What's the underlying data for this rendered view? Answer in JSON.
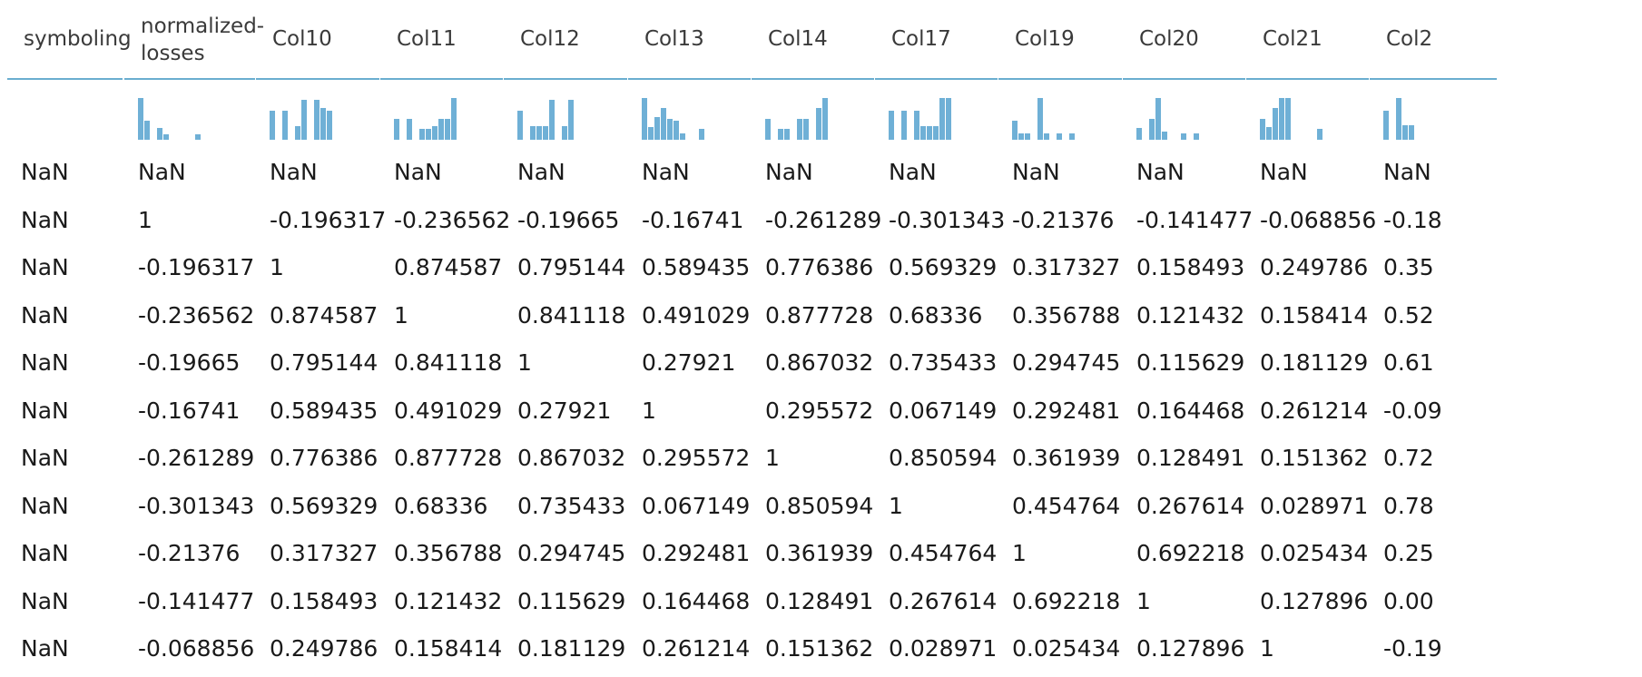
{
  "table": {
    "columns": [
      {
        "label": "symboling",
        "spark": [
          0,
          0,
          0,
          0,
          0,
          0,
          0,
          0,
          0,
          0
        ]
      },
      {
        "label": "normalized-\nlosses",
        "spark": [
          1.0,
          0.45,
          0,
          0.28,
          0.12,
          0,
          0,
          0,
          0,
          0.12
        ]
      },
      {
        "label": "Col10",
        "spark": [
          0.7,
          0,
          0.7,
          0,
          0.32,
          0.95,
          0,
          0.95,
          0.75,
          0.7
        ]
      },
      {
        "label": "Col11",
        "spark": [
          0.5,
          0,
          0.5,
          0,
          0.25,
          0.25,
          0.32,
          0.5,
          0.5,
          1.0
        ]
      },
      {
        "label": "Col12",
        "spark": [
          0.7,
          0,
          0.32,
          0.32,
          0.32,
          0.95,
          0,
          0.32,
          0.95,
          0
        ]
      },
      {
        "label": "Col13",
        "spark": [
          1.0,
          0.3,
          0.55,
          0.75,
          0.5,
          0.45,
          0.15,
          0,
          0,
          0.25
        ]
      },
      {
        "label": "Col14",
        "spark": [
          0.5,
          0,
          0.25,
          0.25,
          0,
          0.5,
          0.5,
          0,
          0.75,
          1.0
        ]
      },
      {
        "label": "Col17",
        "spark": [
          0.7,
          0,
          0.7,
          0,
          0.7,
          0.32,
          0.32,
          0.32,
          1.0,
          1.0
        ]
      },
      {
        "label": "Col19",
        "spark": [
          0.45,
          0.15,
          0.15,
          0,
          1.0,
          0.15,
          0,
          0.15,
          0,
          0.15
        ]
      },
      {
        "label": "Col20",
        "spark": [
          0.28,
          0,
          0.5,
          1.0,
          0.2,
          0,
          0,
          0.15,
          0,
          0.15
        ]
      },
      {
        "label": "Col21",
        "spark": [
          0.5,
          0.3,
          0.75,
          1.0,
          1.0,
          0,
          0,
          0,
          0,
          0.25
        ]
      },
      {
        "label": "Col2",
        "spark": [
          0.7,
          0,
          1.0,
          0.35,
          0.35
        ]
      }
    ],
    "rows": [
      [
        "NaN",
        "NaN",
        "NaN",
        "NaN",
        "NaN",
        "NaN",
        "NaN",
        "NaN",
        "NaN",
        "NaN",
        "NaN",
        "NaN"
      ],
      [
        "NaN",
        "1",
        "-0.196317",
        "-0.236562",
        "-0.19665",
        "-0.16741",
        "-0.261289",
        "-0.301343",
        "-0.21376",
        "-0.141477",
        "-0.068856",
        "-0.18"
      ],
      [
        "NaN",
        "-0.196317",
        "1",
        "0.874587",
        "0.795144",
        "0.589435",
        "0.776386",
        "0.569329",
        "0.317327",
        "0.158493",
        "0.249786",
        "0.35"
      ],
      [
        "NaN",
        "-0.236562",
        "0.874587",
        "1",
        "0.841118",
        "0.491029",
        "0.877728",
        "0.68336",
        "0.356788",
        "0.121432",
        "0.158414",
        "0.52"
      ],
      [
        "NaN",
        "-0.19665",
        "0.795144",
        "0.841118",
        "1",
        "0.27921",
        "0.867032",
        "0.735433",
        "0.294745",
        "0.115629",
        "0.181129",
        "0.61"
      ],
      [
        "NaN",
        "-0.16741",
        "0.589435",
        "0.491029",
        "0.27921",
        "1",
        "0.295572",
        "0.067149",
        "0.292481",
        "0.164468",
        "0.261214",
        "-0.09"
      ],
      [
        "NaN",
        "-0.261289",
        "0.776386",
        "0.877728",
        "0.867032",
        "0.295572",
        "1",
        "0.850594",
        "0.361939",
        "0.128491",
        "0.151362",
        "0.72"
      ],
      [
        "NaN",
        "-0.301343",
        "0.569329",
        "0.68336",
        "0.735433",
        "0.067149",
        "0.850594",
        "1",
        "0.454764",
        "0.267614",
        "0.028971",
        "0.78"
      ],
      [
        "NaN",
        "-0.21376",
        "0.317327",
        "0.356788",
        "0.294745",
        "0.292481",
        "0.361939",
        "0.454764",
        "1",
        "0.692218",
        "0.025434",
        "0.25"
      ],
      [
        "NaN",
        "-0.141477",
        "0.158493",
        "0.121432",
        "0.115629",
        "0.164468",
        "0.128491",
        "0.267614",
        "0.692218",
        "1",
        "0.127896",
        "0.00"
      ],
      [
        "NaN",
        "-0.068856",
        "0.249786",
        "0.158414",
        "0.181129",
        "0.261214",
        "0.151362",
        "0.028971",
        "0.025434",
        "0.127896",
        "1",
        "-0.19"
      ]
    ],
    "accent_color": "#6aaed0",
    "bar_color": "#6fb0d6"
  }
}
